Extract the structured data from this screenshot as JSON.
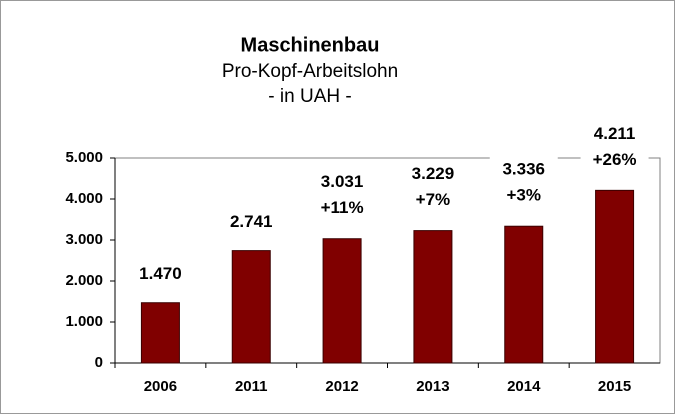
{
  "chart_data": {
    "type": "bar",
    "title": "Maschinenbau",
    "subtitle": "Pro-Kopf-Arbeitslohn",
    "unit_label": "- in UAH -",
    "categories": [
      "2006",
      "2011",
      "2012",
      "2013",
      "2014",
      "2015"
    ],
    "values": [
      1470,
      2741,
      3031,
      3229,
      3336,
      4211
    ],
    "value_labels": [
      "1.470",
      "2.741",
      "3.031",
      "3.229",
      "3.336",
      "4.211"
    ],
    "growth_labels": [
      null,
      null,
      "+11%",
      "+7%",
      "+3%",
      "+26%"
    ],
    "color": "#800000",
    "ylim": [
      0,
      5000
    ],
    "yticks": [
      0,
      {
        "value": 1000,
        "label": "1.000"
      },
      {
        "value": 2000,
        "label": "2.000"
      },
      {
        "value": 3000,
        "label": "3.000"
      },
      {
        "value": 4000,
        "label": "4.000"
      },
      {
        "value": 5000,
        "label": "5.000"
      }
    ]
  }
}
